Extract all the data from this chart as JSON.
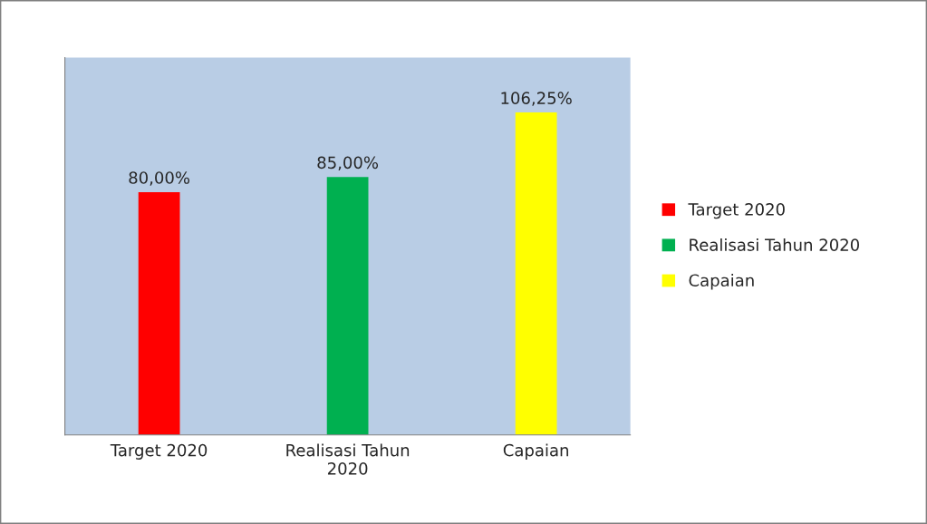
{
  "chart_data": {
    "type": "bar",
    "categories": [
      "Target 2020",
      "Realisasi Tahun\n2020",
      "Capaian"
    ],
    "series": [
      {
        "name": "Target 2020",
        "color": "#ff0000",
        "values": [
          80,
          null,
          null
        ],
        "value_labels": [
          "80,00%",
          null,
          null
        ]
      },
      {
        "name": "Realisasi Tahun 2020",
        "color": "#00b050",
        "values": [
          null,
          85,
          null
        ],
        "value_labels": [
          null,
          "85,00%",
          null
        ]
      },
      {
        "name": "Capaian",
        "color": "#ffff00",
        "values": [
          null,
          null,
          106.25
        ],
        "value_labels": [
          null,
          null,
          "106,25%"
        ]
      }
    ],
    "legend": "right",
    "tick_labels": "x"
  }
}
